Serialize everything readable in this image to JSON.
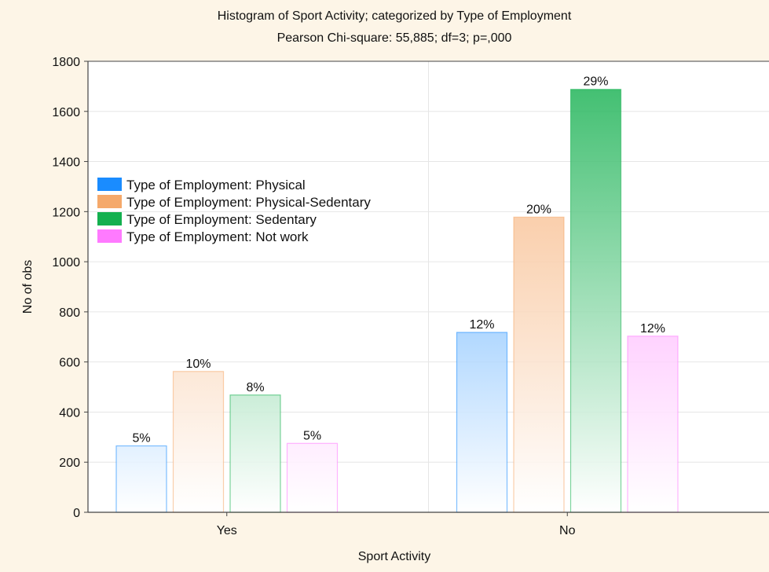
{
  "chart_data": {
    "type": "bar",
    "title": "Histogram of Sport Activity; categorized by Type of Employment",
    "subtitle": "Pearson Chi-square: 55,885; df=3; p=,000",
    "xlabel": "Sport Activity",
    "ylabel": "No of obs",
    "categories": [
      "Yes",
      "No"
    ],
    "ylim": [
      0,
      1800
    ],
    "yticks": [
      0,
      200,
      400,
      600,
      800,
      1000,
      1200,
      1400,
      1600,
      1800
    ],
    "grid": true,
    "legend_position": "left",
    "series": [
      {
        "name": "Type of Employment: Physical",
        "color": "#1a8cff",
        "values": [
          265,
          718
        ],
        "labels": [
          "5%",
          "12%"
        ]
      },
      {
        "name": "Type of Employment: Physical-Sedentary",
        "color": "#f5a96b",
        "values": [
          562,
          1178
        ],
        "labels": [
          "10%",
          "20%"
        ]
      },
      {
        "name": "Type of Employment: Sedentary",
        "color": "#14b04f",
        "values": [
          468,
          1688
        ],
        "labels": [
          "8%",
          "29%"
        ]
      },
      {
        "name": "Type of Employment: Not work",
        "color": "#ff7aff",
        "values": [
          275,
          703
        ],
        "labels": [
          "5%",
          "12%"
        ]
      }
    ]
  }
}
